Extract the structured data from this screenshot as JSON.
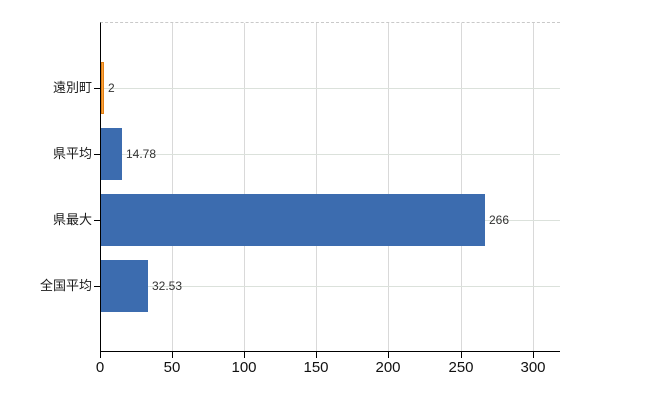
{
  "chart_data": {
    "type": "bar",
    "orientation": "horizontal",
    "categories": [
      "遠別町",
      "県平均",
      "県最大",
      "全国平均"
    ],
    "values": [
      2,
      14.78,
      266,
      32.53
    ],
    "value_labels": [
      "2",
      "14.78",
      "266",
      "32.53"
    ],
    "x_ticks": [
      0,
      50,
      100,
      150,
      200,
      250,
      300
    ],
    "x_tick_labels": [
      "0",
      "50",
      "100",
      "150",
      "200",
      "250",
      "300"
    ],
    "xlim": [
      0,
      319
    ],
    "grid": true,
    "legend": false,
    "title": "",
    "xlabel": "",
    "ylabel": ""
  },
  "colors": {
    "bar_default": "#3c6caf",
    "bar_highlight_fill": "#fca43d",
    "bar_highlight_border": "#e07f15",
    "highlight_index": 0,
    "axis_line": "#000000",
    "v_gridline": "#d9d9d9",
    "h_gridline": "#dbe1db",
    "plot_top_border": "#c9c9c9",
    "category_text": "#1a1a1a",
    "value_text": "#333333"
  }
}
